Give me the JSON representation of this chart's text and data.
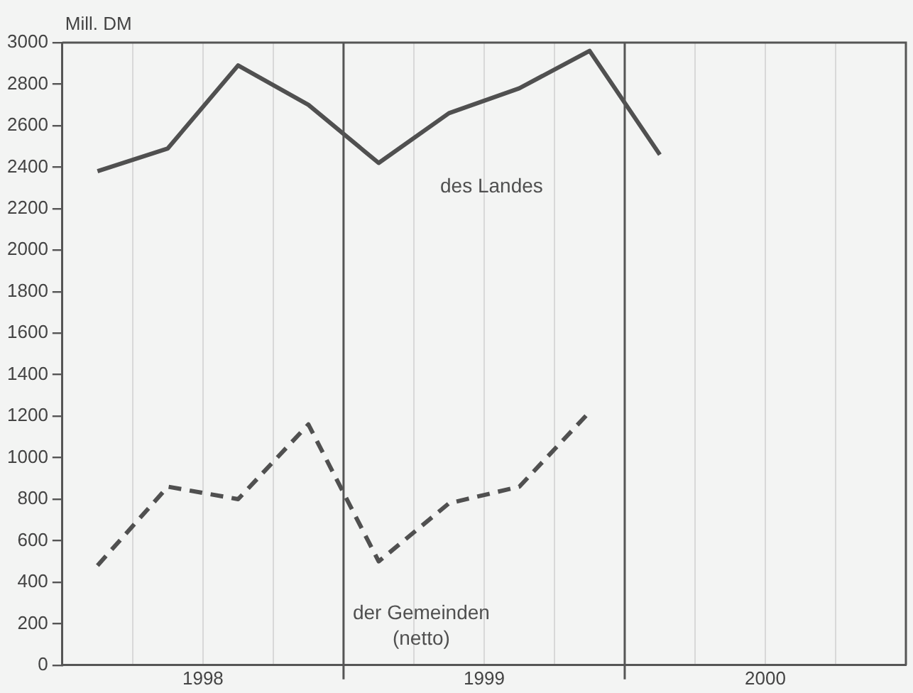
{
  "chart_data": {
    "type": "line",
    "ylabel": "Mill. DM",
    "xlim": [
      1998,
      2001
    ],
    "xticks": [
      {
        "value": 1998.25,
        "label": null
      },
      {
        "value": 1998.5,
        "label": "1998"
      },
      {
        "value": 1998.75,
        "label": null
      },
      {
        "value": 1999.25,
        "label": null
      },
      {
        "value": 1999.5,
        "label": "1999"
      },
      {
        "value": 1999.75,
        "label": null
      },
      {
        "value": 2000.25,
        "label": null
      },
      {
        "value": 2000.5,
        "label": "2000"
      },
      {
        "value": 2000.75,
        "label": null
      }
    ],
    "ylim": [
      0,
      3000
    ],
    "yticks": [
      0,
      200,
      400,
      600,
      800,
      1000,
      1200,
      1400,
      1600,
      1800,
      2000,
      2200,
      2400,
      2600,
      2800,
      3000
    ],
    "grid": "x",
    "legend": false,
    "ref_lines": [
      {
        "axis": "x",
        "value": 1999,
        "color": "#555555"
      },
      {
        "axis": "x",
        "value": 2000,
        "color": "#555555"
      }
    ],
    "series": [
      {
        "name": "des Landes",
        "color": "#505050",
        "line_style": "solid",
        "x": [
          1998.125,
          1998.375,
          1998.625,
          1998.875,
          1999.125,
          1999.375,
          1999.625,
          1999.875,
          2000.125
        ],
        "values": [
          2380,
          2490,
          2890,
          2700,
          2420,
          2660,
          2780,
          2960,
          2460
        ]
      },
      {
        "name": "der Gemeinden (netto)",
        "color": "#505050",
        "line_style": "dashed",
        "x": [
          1998.125,
          1998.375,
          1998.625,
          1998.875,
          1999.125,
          1999.375,
          1999.625,
          1999.875
        ],
        "values": [
          480,
          860,
          800,
          1160,
          500,
          780,
          860,
          1220
        ]
      }
    ]
  }
}
